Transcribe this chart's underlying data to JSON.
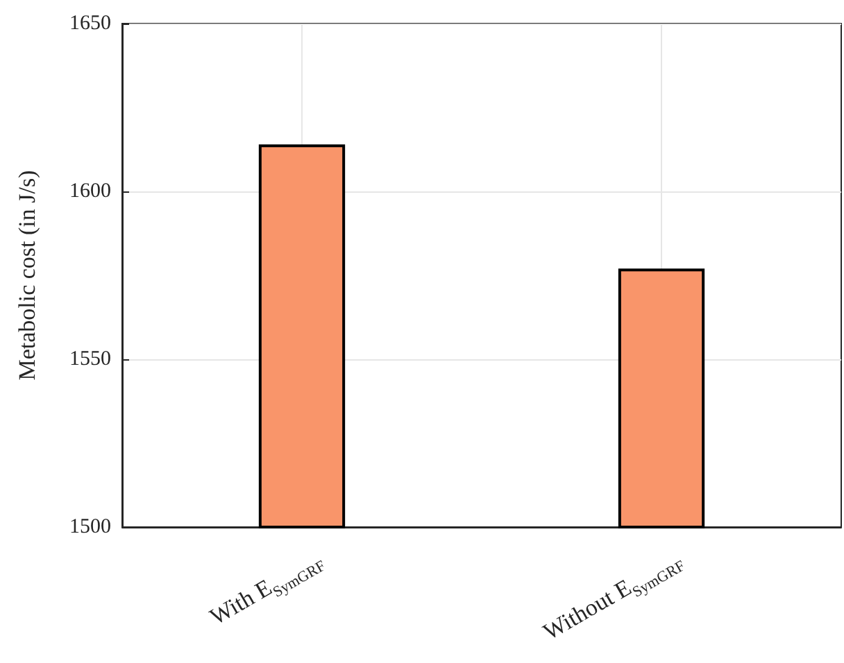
{
  "chart_data": {
    "type": "bar",
    "ylabel": "Metabolic cost (in J/s)",
    "categories": [
      "With E$_{SymGRF}$",
      "Without E$_{SymGRF}$"
    ],
    "values": [
      1614,
      1577
    ],
    "color": "#f9956a",
    "ylim": [
      1500,
      1650
    ],
    "yticks": [
      1500,
      1550,
      1600,
      1650
    ],
    "grid": true
  }
}
